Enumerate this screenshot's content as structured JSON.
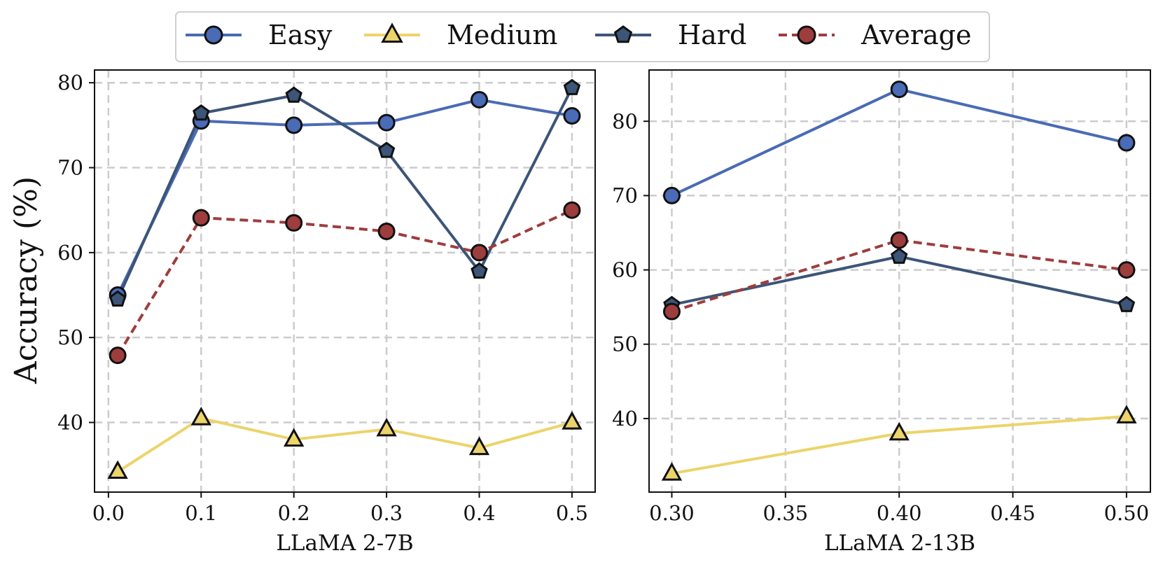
{
  "chart_data": [
    {
      "type": "line",
      "xlabel": "LLaMA 2-7B",
      "ylabel": "Accuracy (%)",
      "x": [
        0.01,
        0.1,
        0.2,
        0.3,
        0.4,
        0.5
      ],
      "xticks": [
        "0.0",
        "0.1",
        "0.2",
        "0.3",
        "0.4",
        "0.5"
      ],
      "xtick_values": [
        0.0,
        0.1,
        0.2,
        0.3,
        0.4,
        0.5
      ],
      "xlim": [
        -0.015,
        0.525
      ],
      "yticks": [
        "40",
        "50",
        "60",
        "70",
        "80"
      ],
      "ytick_values": [
        40,
        50,
        60,
        70,
        80
      ],
      "ylim": [
        31.8,
        81.5
      ],
      "grid": true,
      "series": [
        {
          "name": "Easy",
          "values": [
            55.0,
            75.5,
            75.0,
            75.3,
            78.0,
            76.1
          ]
        },
        {
          "name": "Medium",
          "values": [
            34.2,
            40.5,
            38.0,
            39.2,
            37.0,
            40.0
          ]
        },
        {
          "name": "Hard",
          "values": [
            54.5,
            76.4,
            78.5,
            72.0,
            57.8,
            79.4
          ]
        },
        {
          "name": "Average",
          "values": [
            47.9,
            64.1,
            63.5,
            62.5,
            60.0,
            65.0
          ]
        }
      ]
    },
    {
      "type": "line",
      "xlabel": "LLaMA 2-13B",
      "ylabel": "",
      "x": [
        0.3,
        0.4,
        0.5
      ],
      "xticks": [
        "0.30",
        "0.35",
        "0.40",
        "0.45",
        "0.50"
      ],
      "xtick_values": [
        0.3,
        0.35,
        0.4,
        0.45,
        0.5
      ],
      "xlim": [
        0.29,
        0.5105
      ],
      "yticks": [
        "40",
        "50",
        "60",
        "70",
        "80"
      ],
      "ytick_values": [
        40,
        50,
        60,
        70,
        80
      ],
      "ylim": [
        30.1,
        86.9
      ],
      "grid": true,
      "series": [
        {
          "name": "Easy",
          "values": [
            70.0,
            84.3,
            77.1
          ]
        },
        {
          "name": "Medium",
          "values": [
            32.6,
            38.0,
            40.3
          ]
        },
        {
          "name": "Hard",
          "values": [
            55.3,
            61.8,
            55.3
          ]
        },
        {
          "name": "Average",
          "values": [
            54.4,
            64.0,
            60.0
          ]
        }
      ]
    }
  ],
  "legend": {
    "placement": "top-center",
    "items": [
      {
        "label": "Easy",
        "color": "#4a6bb5",
        "marker": "circle",
        "dashed": false
      },
      {
        "label": "Medium",
        "color": "#ecd46a",
        "marker": "triangle",
        "dashed": false
      },
      {
        "label": "Hard",
        "color": "#3c5578",
        "marker": "pentagon",
        "dashed": false
      },
      {
        "label": "Average",
        "color": "#9e3d3d",
        "marker": "circle",
        "dashed": true
      }
    ]
  },
  "styles": {
    "Easy": {
      "color": "#4a6bb5",
      "marker": "circle",
      "dashed": false
    },
    "Medium": {
      "color": "#ecd46a",
      "marker": "triangle",
      "dashed": false
    },
    "Hard": {
      "color": "#3c5578",
      "marker": "pentagon",
      "dashed": false
    },
    "Average": {
      "color": "#9e3d3d",
      "marker": "circle",
      "dashed": true
    }
  }
}
